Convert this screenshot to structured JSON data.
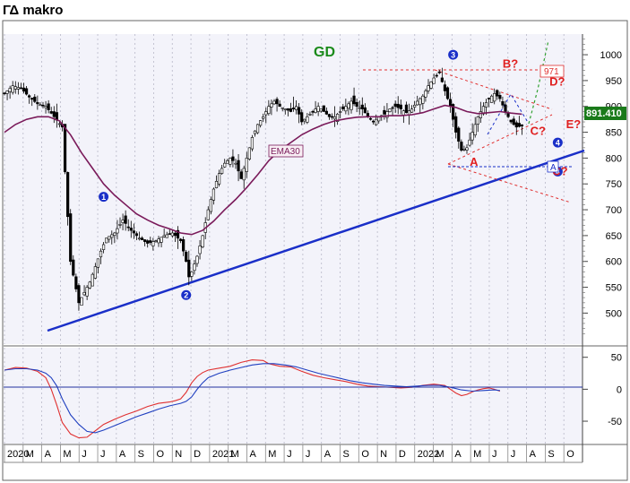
{
  "title": "ΓΔ makro",
  "chart_data": {
    "type": "candlestick",
    "symbol_label": "GD",
    "last_price": "891.410",
    "ema_label": "EMA30",
    "level_971": "971",
    "price_axis": {
      "ticks": [
        "1000",
        "950",
        "900",
        "850",
        "800",
        "750",
        "700",
        "650",
        "600",
        "550",
        "500"
      ],
      "min": 440,
      "max": 1040
    },
    "osc_axis": {
      "ticks": [
        "50",
        "0",
        "-50"
      ],
      "min": -85,
      "max": 65
    },
    "x_labels": [
      "2020",
      "M",
      "A",
      "M",
      "J",
      "J",
      "A",
      "S",
      "O",
      "N",
      "D",
      "2021",
      "M",
      "A",
      "M",
      "J",
      "J",
      "A",
      "S",
      "O",
      "N",
      "D",
      "2022",
      "M",
      "A",
      "M",
      "J",
      "J",
      "A",
      "S",
      "O"
    ],
    "price_path": [
      [
        0,
        925
      ],
      [
        3,
        940
      ],
      [
        6,
        935
      ],
      [
        9,
        918
      ],
      [
        12,
        905
      ],
      [
        15,
        900
      ],
      [
        18,
        880
      ],
      [
        21,
        860
      ],
      [
        24,
        600
      ],
      [
        27,
        520
      ],
      [
        29,
        540
      ],
      [
        31,
        560
      ],
      [
        33,
        590
      ],
      [
        35,
        620
      ],
      [
        37,
        645
      ],
      [
        40,
        655
      ],
      [
        43,
        680
      ],
      [
        46,
        660
      ],
      [
        49,
        645
      ],
      [
        52,
        635
      ],
      [
        55,
        640
      ],
      [
        58,
        650
      ],
      [
        61,
        655
      ],
      [
        64,
        640
      ],
      [
        66,
        600
      ],
      [
        67,
        570
      ],
      [
        68,
        580
      ],
      [
        70,
        610
      ],
      [
        72,
        650
      ],
      [
        74,
        700
      ],
      [
        76,
        740
      ],
      [
        78,
        770
      ],
      [
        80,
        790
      ],
      [
        82,
        800
      ],
      [
        84,
        790
      ],
      [
        86,
        760
      ],
      [
        88,
        800
      ],
      [
        90,
        840
      ],
      [
        92,
        865
      ],
      [
        94,
        880
      ],
      [
        96,
        900
      ],
      [
        98,
        910
      ],
      [
        100,
        900
      ],
      [
        102,
        895
      ],
      [
        104,
        890
      ],
      [
        106,
        900
      ],
      [
        108,
        870
      ],
      [
        110,
        880
      ],
      [
        112,
        890
      ],
      [
        114,
        900
      ],
      [
        116,
        890
      ],
      [
        118,
        880
      ],
      [
        120,
        880
      ],
      [
        122,
        890
      ],
      [
        124,
        900
      ],
      [
        126,
        910
      ],
      [
        128,
        900
      ],
      [
        130,
        895
      ],
      [
        132,
        880
      ],
      [
        134,
        870
      ],
      [
        136,
        880
      ],
      [
        138,
        885
      ],
      [
        140,
        895
      ],
      [
        142,
        900
      ],
      [
        144,
        895
      ],
      [
        146,
        888
      ],
      [
        148,
        895
      ],
      [
        150,
        910
      ],
      [
        152,
        920
      ],
      [
        154,
        940
      ],
      [
        156,
        955
      ],
      [
        158,
        965
      ],
      [
        160,
        930
      ],
      [
        162,
        900
      ],
      [
        164,
        850
      ],
      [
        166,
        815
      ],
      [
        168,
        820
      ],
      [
        170,
        850
      ],
      [
        172,
        880
      ],
      [
        174,
        900
      ],
      [
        176,
        915
      ],
      [
        178,
        925
      ],
      [
        180,
        915
      ],
      [
        182,
        890
      ],
      [
        184,
        870
      ],
      [
        186,
        860
      ],
      [
        188,
        862
      ]
    ],
    "ema_path": [
      [
        0,
        850
      ],
      [
        4,
        865
      ],
      [
        8,
        875
      ],
      [
        12,
        880
      ],
      [
        16,
        880
      ],
      [
        20,
        872
      ],
      [
        24,
        845
      ],
      [
        28,
        810
      ],
      [
        32,
        780
      ],
      [
        36,
        750
      ],
      [
        40,
        728
      ],
      [
        44,
        710
      ],
      [
        48,
        692
      ],
      [
        52,
        680
      ],
      [
        56,
        670
      ],
      [
        60,
        663
      ],
      [
        64,
        655
      ],
      [
        68,
        652
      ],
      [
        72,
        660
      ],
      [
        76,
        678
      ],
      [
        80,
        700
      ],
      [
        84,
        720
      ],
      [
        88,
        743
      ],
      [
        92,
        768
      ],
      [
        96,
        795
      ],
      [
        100,
        815
      ],
      [
        104,
        830
      ],
      [
        108,
        845
      ],
      [
        112,
        856
      ],
      [
        116,
        865
      ],
      [
        120,
        872
      ],
      [
        124,
        876
      ],
      [
        128,
        879
      ],
      [
        132,
        880
      ],
      [
        136,
        880
      ],
      [
        140,
        882
      ],
      [
        144,
        882
      ],
      [
        148,
        884
      ],
      [
        152,
        888
      ],
      [
        156,
        895
      ],
      [
        160,
        902
      ],
      [
        164,
        898
      ],
      [
        168,
        890
      ],
      [
        172,
        886
      ],
      [
        176,
        888
      ],
      [
        180,
        890
      ],
      [
        184,
        887
      ],
      [
        188,
        885
      ]
    ],
    "macd_path": [
      [
        0,
        30
      ],
      [
        4,
        34
      ],
      [
        8,
        33
      ],
      [
        12,
        28
      ],
      [
        15,
        18
      ],
      [
        17,
        0
      ],
      [
        19,
        -25
      ],
      [
        21,
        -52
      ],
      [
        24,
        -70
      ],
      [
        27,
        -76
      ],
      [
        30,
        -75
      ],
      [
        33,
        -65
      ],
      [
        36,
        -55
      ],
      [
        40,
        -47
      ],
      [
        44,
        -40
      ],
      [
        48,
        -34
      ],
      [
        52,
        -27
      ],
      [
        56,
        -22
      ],
      [
        60,
        -20
      ],
      [
        62,
        -18
      ],
      [
        64,
        -15
      ],
      [
        66,
        -5
      ],
      [
        68,
        10
      ],
      [
        70,
        20
      ],
      [
        72,
        26
      ],
      [
        74,
        30
      ],
      [
        78,
        33
      ],
      [
        82,
        36
      ],
      [
        86,
        42
      ],
      [
        90,
        46
      ],
      [
        94,
        45
      ],
      [
        96,
        40
      ],
      [
        100,
        36
      ],
      [
        104,
        35
      ],
      [
        108,
        28
      ],
      [
        112,
        22
      ],
      [
        116,
        18
      ],
      [
        120,
        15
      ],
      [
        124,
        12
      ],
      [
        128,
        8
      ],
      [
        132,
        5
      ],
      [
        136,
        4
      ],
      [
        140,
        3
      ],
      [
        144,
        2
      ],
      [
        148,
        3
      ],
      [
        152,
        6
      ],
      [
        156,
        8
      ],
      [
        160,
        6
      ],
      [
        162,
        0
      ],
      [
        164,
        -6
      ],
      [
        166,
        -10
      ],
      [
        168,
        -8
      ],
      [
        170,
        -4
      ],
      [
        172,
        -1
      ],
      [
        174,
        1
      ],
      [
        176,
        2
      ],
      [
        178,
        0
      ],
      [
        180,
        -3
      ]
    ],
    "signal_path": [
      [
        0,
        30
      ],
      [
        4,
        32
      ],
      [
        8,
        32
      ],
      [
        12,
        30
      ],
      [
        15,
        25
      ],
      [
        17,
        18
      ],
      [
        19,
        5
      ],
      [
        21,
        -15
      ],
      [
        24,
        -40
      ],
      [
        27,
        -55
      ],
      [
        30,
        -66
      ],
      [
        33,
        -68
      ],
      [
        36,
        -64
      ],
      [
        40,
        -57
      ],
      [
        44,
        -50
      ],
      [
        48,
        -43
      ],
      [
        52,
        -37
      ],
      [
        56,
        -31
      ],
      [
        60,
        -26
      ],
      [
        64,
        -22
      ],
      [
        66,
        -19
      ],
      [
        68,
        -12
      ],
      [
        70,
        0
      ],
      [
        72,
        10
      ],
      [
        74,
        18
      ],
      [
        78,
        25
      ],
      [
        82,
        30
      ],
      [
        86,
        34
      ],
      [
        90,
        38
      ],
      [
        94,
        40
      ],
      [
        98,
        40
      ],
      [
        102,
        38
      ],
      [
        106,
        35
      ],
      [
        110,
        30
      ],
      [
        114,
        25
      ],
      [
        118,
        21
      ],
      [
        122,
        17
      ],
      [
        126,
        13
      ],
      [
        130,
        10
      ],
      [
        134,
        8
      ],
      [
        138,
        6
      ],
      [
        142,
        5
      ],
      [
        146,
        4
      ],
      [
        150,
        5
      ],
      [
        154,
        6
      ],
      [
        158,
        6
      ],
      [
        162,
        3
      ],
      [
        166,
        -1
      ],
      [
        170,
        -3
      ],
      [
        174,
        -2
      ],
      [
        178,
        -1
      ],
      [
        180,
        -2
      ]
    ],
    "markers": [
      {
        "label": "1",
        "x": 36,
        "y": 725
      },
      {
        "label": "2",
        "x": 66,
        "y": 535
      },
      {
        "label": "3",
        "x": 163,
        "y": 1000
      },
      {
        "label": "4",
        "x": 201,
        "y": 830
      },
      {
        "label": "4",
        "x": 201,
        "y": 774
      }
    ],
    "wave_labels": [
      {
        "label": "A",
        "x": 169,
        "y": 785
      },
      {
        "label": "B?",
        "x": 181,
        "y": 975
      },
      {
        "label": "C?",
        "x": 191,
        "y": 845
      },
      {
        "label": "D?",
        "x": 198,
        "y": 940
      },
      {
        "label": "E?",
        "x": 204,
        "y": 858
      },
      {
        "label": "C?",
        "x": 199,
        "y": 767
      }
    ],
    "box_label": "A"
  }
}
